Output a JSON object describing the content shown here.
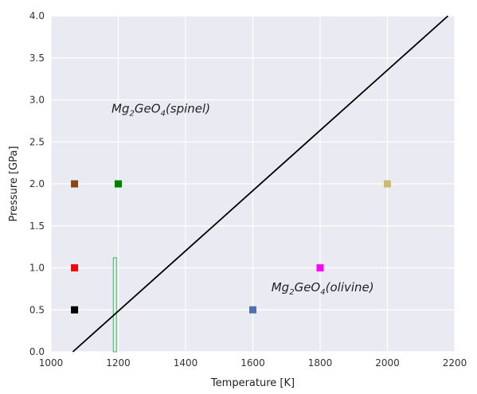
{
  "chart_data": {
    "type": "scatter",
    "xlabel": "Temperature [K]",
    "ylabel": "Pressure [GPa]",
    "xlim": [
      1000,
      2200
    ],
    "ylim": [
      0.0,
      4.0
    ],
    "x_ticks": [
      "1000",
      "1200",
      "1400",
      "1600",
      "1800",
      "2000",
      "2200"
    ],
    "y_ticks": [
      "0.0",
      "0.5",
      "1.0",
      "1.5",
      "2.0",
      "2.5",
      "3.0",
      "3.5",
      "4.0"
    ],
    "grid": true,
    "background": "#eaeaf2",
    "points": [
      {
        "x": 1070,
        "y": 0.5,
        "color": "#000000"
      },
      {
        "x": 1070,
        "y": 1.0,
        "color": "#ff0000"
      },
      {
        "x": 1070,
        "y": 2.0,
        "color": "#8b4513"
      },
      {
        "x": 1200,
        "y": 2.0,
        "color": "#008000"
      },
      {
        "x": 1600,
        "y": 0.5,
        "color": "#4c72b0"
      },
      {
        "x": 1800,
        "y": 1.0,
        "color": "#ff00ff"
      },
      {
        "x": 2000,
        "y": 2.0,
        "color": "#ccb974"
      }
    ],
    "phase_boundary": {
      "x": [
        1065,
        2180
      ],
      "y": [
        0.0,
        4.0
      ],
      "color": "#000000"
    },
    "vertical_bar": {
      "x": 1190,
      "y": [
        0.0,
        1.12
      ],
      "color": "#55a868"
    },
    "annotations": [
      {
        "base": "Mg",
        "sub1": "2",
        "mid": "GeO",
        "sub2": "4",
        "tail": "(spinel)",
        "x": 1180,
        "y": 2.85
      },
      {
        "base": "Mg",
        "sub1": "2",
        "mid": "GeO",
        "sub2": "4",
        "tail": "(olivine)",
        "x": 1655,
        "y": 0.72
      }
    ]
  }
}
